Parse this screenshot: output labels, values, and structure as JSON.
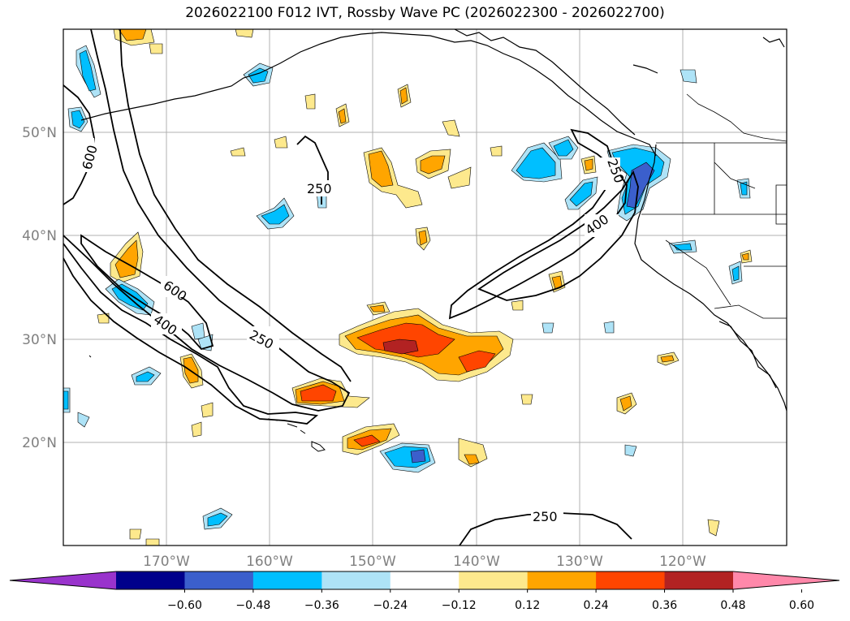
{
  "title": "2026022100 F012 IVT, Rossby Wave PC (2026022300 - 2026022700)",
  "lat_labels": [
    "50°N",
    "40°N",
    "30°N",
    "20°N"
  ],
  "lon_labels": [
    "170°W",
    "160°W",
    "150°W",
    "140°W",
    "130°W",
    "120°W"
  ],
  "contour_labels": [
    "600",
    "250",
    "600",
    "400",
    "250",
    "250",
    "400",
    "250"
  ],
  "colorbar": {
    "ticks": [
      "−0.60",
      "−0.48",
      "−0.36",
      "−0.24",
      "−0.12",
      "0.12",
      "0.24",
      "0.36",
      "0.48",
      "0.60"
    ],
    "colors": [
      "#9933cc",
      "#00008b",
      "#3b5fcc",
      "#00bfff",
      "#aee3f7",
      "#ffffff",
      "#fde98d",
      "#ffa500",
      "#ff4500",
      "#b22222",
      "#ff88aa"
    ]
  },
  "fill_colors": {
    "pos1": "#fde98d",
    "pos2": "#ffa500",
    "pos3": "#ff4500",
    "pos4": "#b22222",
    "neg1": "#aee3f7",
    "neg2": "#00bfff",
    "neg3": "#3b5fcc"
  }
}
